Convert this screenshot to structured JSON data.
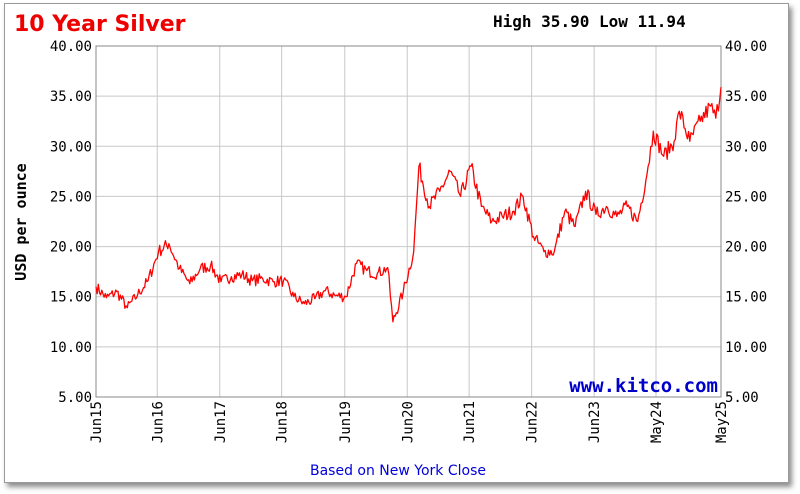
{
  "chart_data": {
    "type": "line",
    "title": "10 Year Silver",
    "stats": {
      "high_label": "High",
      "high": "35.90",
      "low_label": "Low",
      "low": "11.94"
    },
    "ylabel": "USD per ounce",
    "footer": "Based on New York Close",
    "watermark": "www.kitco.com",
    "ylim": [
      5,
      40
    ],
    "y_ticks": [
      "40.00",
      "35.00",
      "30.00",
      "25.00",
      "20.00",
      "15.00",
      "10.00",
      "5.00"
    ],
    "x_ticks": [
      "Jun15",
      "Jun16",
      "Jun17",
      "Jun18",
      "Jun19",
      "Jun20",
      "Jun21",
      "Jun22",
      "Jun23",
      "May24",
      "May25"
    ],
    "grid": true,
    "series": [
      {
        "color": "#ff0000",
        "x": [
          "2015-06",
          "2015-08",
          "2015-10",
          "2015-12",
          "2016-02",
          "2016-04",
          "2016-06",
          "2016-08",
          "2016-10",
          "2016-12",
          "2017-02",
          "2017-04",
          "2017-06",
          "2017-08",
          "2017-10",
          "2017-12",
          "2018-02",
          "2018-04",
          "2018-06",
          "2018-08",
          "2018-10",
          "2018-12",
          "2019-02",
          "2019-04",
          "2019-06",
          "2019-08",
          "2019-10",
          "2019-12",
          "2020-02",
          "2020-03",
          "2020-05",
          "2020-07",
          "2020-08",
          "2020-10",
          "2020-12",
          "2021-02",
          "2021-04",
          "2021-06",
          "2021-08",
          "2021-10",
          "2021-12",
          "2022-02",
          "2022-04",
          "2022-06",
          "2022-08",
          "2022-10",
          "2022-12",
          "2023-02",
          "2023-04",
          "2023-06",
          "2023-08",
          "2023-10",
          "2023-12",
          "2024-02",
          "2024-04",
          "2024-05",
          "2024-07",
          "2024-09",
          "2024-10",
          "2024-12",
          "2025-02",
          "2025-04",
          "2025-05",
          "2025-06"
        ],
        "y": [
          16.0,
          14.9,
          15.5,
          13.9,
          15.2,
          16.6,
          19.5,
          20.3,
          17.8,
          16.3,
          17.8,
          18.1,
          16.5,
          17.0,
          17.2,
          16.6,
          16.8,
          16.5,
          16.6,
          15.0,
          14.3,
          14.8,
          15.6,
          15.1,
          15.0,
          18.3,
          17.6,
          17.3,
          17.9,
          12.5,
          15.5,
          19.5,
          28.0,
          24.0,
          25.5,
          27.5,
          25.0,
          28.0,
          24.0,
          22.5,
          23.0,
          23.5,
          25.0,
          21.0,
          19.5,
          19.5,
          23.5,
          22.0,
          25.5,
          23.2,
          24.0,
          23.0,
          24.0,
          22.5,
          28.0,
          31.5,
          29.0,
          30.5,
          33.5,
          30.5,
          32.5,
          34.0,
          32.8,
          35.9
        ]
      }
    ]
  }
}
